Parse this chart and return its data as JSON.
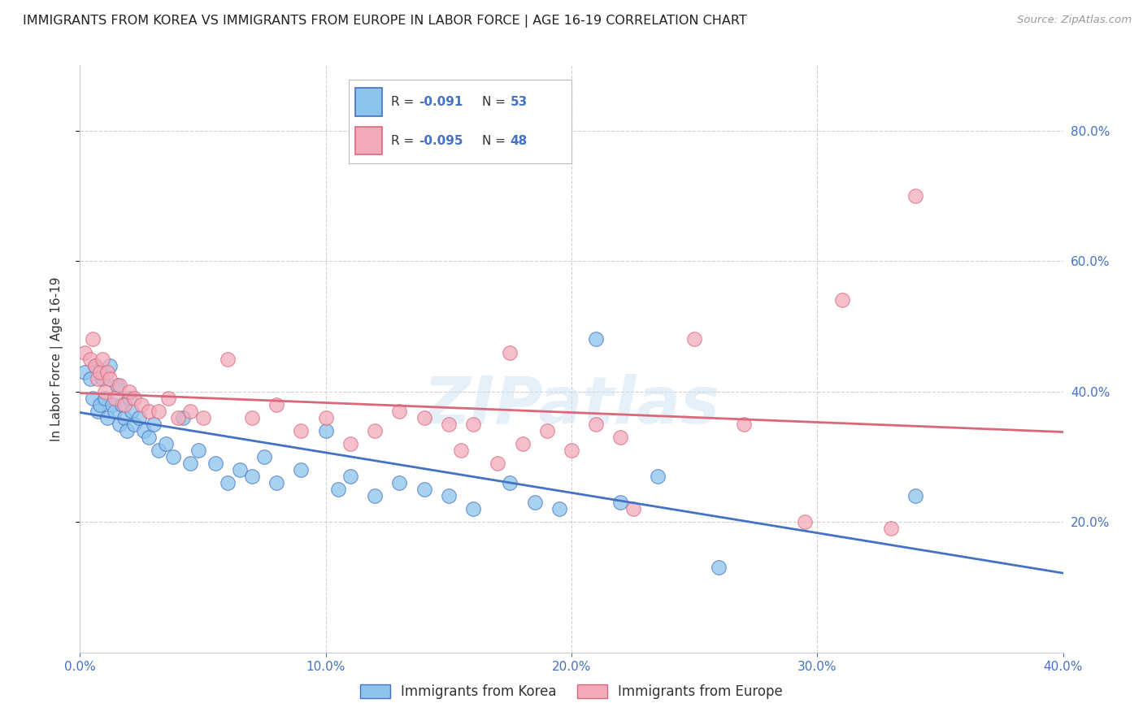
{
  "title": "IMMIGRANTS FROM KOREA VS IMMIGRANTS FROM EUROPE IN LABOR FORCE | AGE 16-19 CORRELATION CHART",
  "source": "Source: ZipAtlas.com",
  "ylabel": "In Labor Force | Age 16-19",
  "xlim": [
    0.0,
    0.4
  ],
  "ylim": [
    0.0,
    0.9
  ],
  "xtick_vals": [
    0.0,
    0.1,
    0.2,
    0.3,
    0.4
  ],
  "ytick_vals": [
    0.2,
    0.4,
    0.6,
    0.8
  ],
  "legend_label_blue": "Immigrants from Korea",
  "legend_label_pink": "Immigrants from Europe",
  "legend_r_blue": "-0.091",
  "legend_n_blue": "53",
  "legend_r_pink": "-0.095",
  "legend_n_pink": "48",
  "color_blue": "#8DC4ED",
  "color_pink": "#F4AABB",
  "color_blue_line": "#4472C4",
  "color_pink_line": "#D9687A",
  "color_axis": "#4472C4",
  "watermark": "ZIPatlas",
  "korea_x": [
    0.002,
    0.004,
    0.005,
    0.006,
    0.007,
    0.008,
    0.009,
    0.01,
    0.011,
    0.012,
    0.013,
    0.014,
    0.015,
    0.016,
    0.017,
    0.018,
    0.019,
    0.02,
    0.021,
    0.022,
    0.024,
    0.026,
    0.028,
    0.03,
    0.032,
    0.035,
    0.038,
    0.042,
    0.045,
    0.048,
    0.055,
    0.06,
    0.065,
    0.07,
    0.075,
    0.08,
    0.09,
    0.1,
    0.105,
    0.11,
    0.12,
    0.13,
    0.14,
    0.15,
    0.16,
    0.175,
    0.185,
    0.195,
    0.21,
    0.22,
    0.235,
    0.26,
    0.34
  ],
  "korea_y": [
    0.43,
    0.42,
    0.39,
    0.44,
    0.37,
    0.38,
    0.42,
    0.39,
    0.36,
    0.44,
    0.38,
    0.37,
    0.41,
    0.35,
    0.38,
    0.36,
    0.34,
    0.39,
    0.37,
    0.35,
    0.36,
    0.34,
    0.33,
    0.35,
    0.31,
    0.32,
    0.3,
    0.36,
    0.29,
    0.31,
    0.29,
    0.26,
    0.28,
    0.27,
    0.3,
    0.26,
    0.28,
    0.34,
    0.25,
    0.27,
    0.24,
    0.26,
    0.25,
    0.24,
    0.22,
    0.26,
    0.23,
    0.22,
    0.48,
    0.23,
    0.27,
    0.13,
    0.24
  ],
  "europe_x": [
    0.002,
    0.004,
    0.005,
    0.006,
    0.007,
    0.008,
    0.009,
    0.01,
    0.011,
    0.012,
    0.014,
    0.016,
    0.018,
    0.02,
    0.022,
    0.025,
    0.028,
    0.032,
    0.036,
    0.04,
    0.045,
    0.05,
    0.06,
    0.07,
    0.08,
    0.09,
    0.1,
    0.11,
    0.12,
    0.13,
    0.14,
    0.15,
    0.155,
    0.16,
    0.17,
    0.175,
    0.18,
    0.19,
    0.2,
    0.21,
    0.22,
    0.225,
    0.25,
    0.27,
    0.295,
    0.31,
    0.33,
    0.34
  ],
  "europe_y": [
    0.46,
    0.45,
    0.48,
    0.44,
    0.42,
    0.43,
    0.45,
    0.4,
    0.43,
    0.42,
    0.39,
    0.41,
    0.38,
    0.4,
    0.39,
    0.38,
    0.37,
    0.37,
    0.39,
    0.36,
    0.37,
    0.36,
    0.45,
    0.36,
    0.38,
    0.34,
    0.36,
    0.32,
    0.34,
    0.37,
    0.36,
    0.35,
    0.31,
    0.35,
    0.29,
    0.46,
    0.32,
    0.34,
    0.31,
    0.35,
    0.33,
    0.22,
    0.48,
    0.35,
    0.2,
    0.54,
    0.19,
    0.7
  ]
}
